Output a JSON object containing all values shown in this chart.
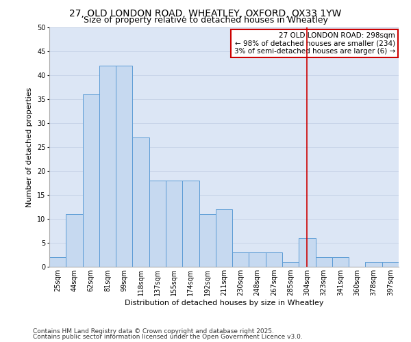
{
  "title_line1": "27, OLD LONDON ROAD, WHEATLEY, OXFORD, OX33 1YW",
  "title_line2": "Size of property relative to detached houses in Wheatley",
  "xlabel": "Distribution of detached houses by size in Wheatley",
  "ylabel": "Number of detached properties",
  "footer_line1": "Contains HM Land Registry data © Crown copyright and database right 2025.",
  "footer_line2": "Contains public sector information licensed under the Open Government Licence v3.0.",
  "bin_labels": [
    "25sqm",
    "44sqm",
    "62sqm",
    "81sqm",
    "99sqm",
    "118sqm",
    "137sqm",
    "155sqm",
    "174sqm",
    "192sqm",
    "211sqm",
    "230sqm",
    "248sqm",
    "267sqm",
    "285sqm",
    "304sqm",
    "323sqm",
    "341sqm",
    "360sqm",
    "378sqm",
    "397sqm"
  ],
  "bar_values": [
    2,
    11,
    36,
    42,
    42,
    27,
    18,
    18,
    18,
    11,
    12,
    3,
    3,
    3,
    1,
    6,
    2,
    2,
    0,
    1,
    1
  ],
  "bar_color": "#c6d9f0",
  "bar_edge_color": "#5b9bd5",
  "vline_x": 15,
  "vline_color": "#cc0000",
  "annotation_text": "27 OLD LONDON ROAD: 298sqm\n← 98% of detached houses are smaller (234)\n3% of semi-detached houses are larger (6) →",
  "annotation_box_color": "#cc0000",
  "ylim": [
    0,
    50
  ],
  "yticks": [
    0,
    5,
    10,
    15,
    20,
    25,
    30,
    35,
    40,
    45,
    50
  ],
  "grid_color": "#c8d4e8",
  "bg_color": "#dce6f5",
  "title_fontsize": 10,
  "subtitle_fontsize": 9,
  "axis_label_fontsize": 8,
  "tick_fontsize": 7,
  "annotation_fontsize": 7.5,
  "footer_fontsize": 6.5
}
